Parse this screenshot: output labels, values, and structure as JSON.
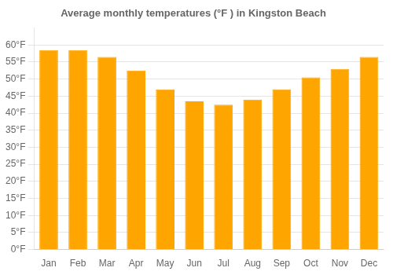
{
  "chart_data": {
    "type": "bar",
    "title": "Average monthly temperatures (°F ) in Kingston Beach",
    "categories": [
      "Jan",
      "Feb",
      "Mar",
      "Apr",
      "May",
      "Jun",
      "Jul",
      "Aug",
      "Sep",
      "Oct",
      "Nov",
      "Dec"
    ],
    "values": [
      58.5,
      58.5,
      56.5,
      52.5,
      47,
      43.5,
      42.5,
      44,
      47,
      50.5,
      53,
      56.5
    ],
    "color": "#FFA500",
    "ylim": [
      0,
      65
    ],
    "yticks": [
      {
        "value": 0,
        "label": "0°F"
      },
      {
        "value": 5,
        "label": "5°F"
      },
      {
        "value": 10,
        "label": "10°F"
      },
      {
        "value": 15,
        "label": "15°F"
      },
      {
        "value": 20,
        "label": "20°F"
      },
      {
        "value": 25,
        "label": "25°F"
      },
      {
        "value": 30,
        "label": "30°F"
      },
      {
        "value": 35,
        "label": "35°F"
      },
      {
        "value": 40,
        "label": "40°F"
      },
      {
        "value": 45,
        "label": "45°F"
      },
      {
        "value": 50,
        "label": "50°F"
      },
      {
        "value": 55,
        "label": "55°F"
      },
      {
        "value": 60,
        "label": "60°F"
      }
    ],
    "grid": true
  }
}
